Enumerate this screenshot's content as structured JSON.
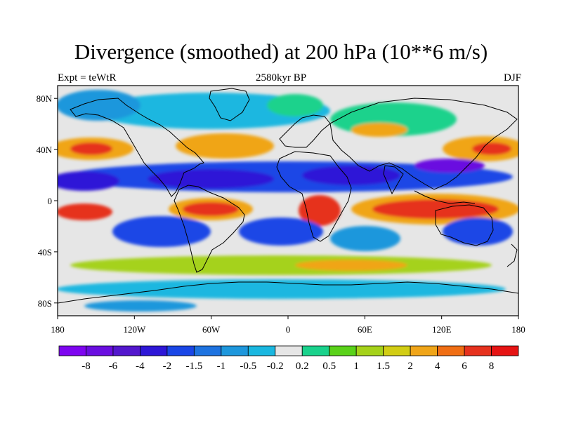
{
  "title": "Divergence (smoothed) at 200 hPa (10**6 m/s)",
  "subtitle_left": "Expt = teWtR",
  "subtitle_center": "2580kyr BP",
  "subtitle_right": "DJF",
  "map": {
    "projection": "cylindrical-equidistant",
    "lon_range": [
      -180,
      180
    ],
    "lat_range": [
      -90,
      90
    ],
    "lon_ticks": [
      {
        "value": -180,
        "label": "180"
      },
      {
        "value": -120,
        "label": "120W"
      },
      {
        "value": -60,
        "label": "60W"
      },
      {
        "value": 0,
        "label": "0"
      },
      {
        "value": 60,
        "label": "60E"
      },
      {
        "value": 120,
        "label": "120E"
      },
      {
        "value": 180,
        "label": "180"
      }
    ],
    "lat_ticks": [
      {
        "value": 80,
        "label": "80N"
      },
      {
        "value": 40,
        "label": "40N"
      },
      {
        "value": 0,
        "label": "0"
      },
      {
        "value": -40,
        "label": "40S"
      },
      {
        "value": -80,
        "label": "80S"
      }
    ]
  },
  "colorbar": {
    "colors": [
      "#7e05f0",
      "#6a0ee0",
      "#5317cd",
      "#2e17d7",
      "#1a46e6",
      "#1e73e0",
      "#1e97dc",
      "#1ab7e0",
      "#e6e6e6",
      "#1ad28c",
      "#5ad21a",
      "#a5d21a",
      "#d2cd14",
      "#f0a519",
      "#f06e14",
      "#e6321e",
      "#e61414"
    ],
    "labels": [
      "-8",
      "-6",
      "-4",
      "-2",
      "-1.5",
      "-1",
      "-0.5",
      "-0.2",
      "0.2",
      "0.5",
      "1",
      "1.5",
      "2",
      "4",
      "6",
      "8"
    ]
  },
  "legend_colors": {
    "strong_conv": "#2e17d7",
    "mod_conv": "#1a46e6",
    "weak_conv": "#1e97dc",
    "light_conv": "#1ab7e0",
    "neutral": "#e6e6e6",
    "weak_div": "#1ad28c",
    "mid_div": "#a5d21a",
    "mod_div": "#f0a519",
    "strong_div": "#e6321e",
    "peak_div": "#f06e14",
    "strong_purple": "#6a0ee0"
  }
}
